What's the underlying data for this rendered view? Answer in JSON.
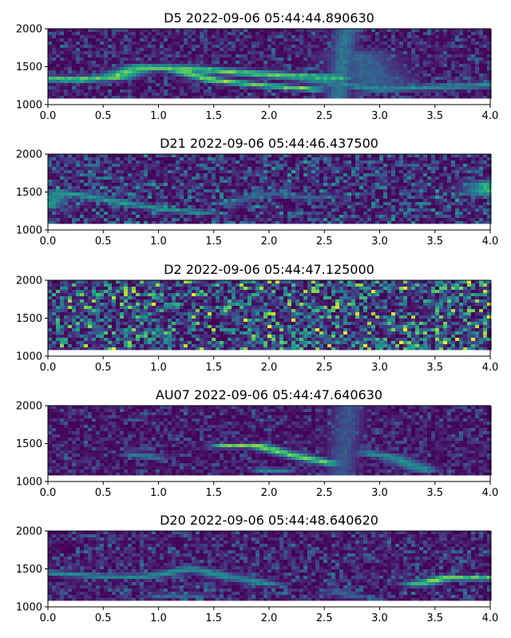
{
  "chart_data": [
    {
      "type": "heatmap",
      "title": "D5 2022-09-06 05:44:44.890630",
      "xlabel": "",
      "ylabel": "",
      "xlim": [
        0.0,
        4.0
      ],
      "ylim": [
        1000,
        2000
      ],
      "x_ticks": [
        "0.0",
        "0.5",
        "1.0",
        "1.5",
        "2.0",
        "2.5",
        "3.0",
        "3.5",
        "4.0"
      ],
      "y_ticks": [
        "1000",
        "1500",
        "2000"
      ],
      "data_ylim": [
        1080,
        2000
      ],
      "colormap": "viridis",
      "seed": 11,
      "noise_level": 0.18,
      "traces": [
        {
          "points": [
            [
              0.0,
              1340
            ],
            [
              0.3,
              1330
            ],
            [
              0.6,
              1360
            ],
            [
              0.85,
              1490
            ],
            [
              1.2,
              1480
            ],
            [
              1.6,
              1440
            ],
            [
              2.1,
              1380
            ],
            [
              2.6,
              1360
            ]
          ],
          "intensity": 0.85,
          "width": 30
        },
        {
          "points": [
            [
              1.1,
              1480
            ],
            [
              1.5,
              1320
            ],
            [
              1.9,
              1260
            ],
            [
              2.4,
              1200
            ]
          ],
          "intensity": 0.9,
          "width": 22
        },
        {
          "points": [
            [
              2.0,
              1420
            ],
            [
              2.5,
              1300
            ],
            [
              3.0,
              1200
            ],
            [
              3.5,
              1230
            ],
            [
              4.0,
              1260
            ]
          ],
          "intensity": 0.55,
          "width": 30
        },
        {
          "points": [
            [
              2.62,
              1050
            ],
            [
              2.66,
              1500
            ],
            [
              2.7,
              2000
            ]
          ],
          "intensity": 0.45,
          "width": 20
        },
        {
          "points": [
            [
              2.8,
              1650
            ],
            [
              2.9,
              1400
            ],
            [
              3.0,
              1250
            ]
          ],
          "intensity": 0.35,
          "width": 60
        }
      ]
    },
    {
      "type": "heatmap",
      "title": "D21 2022-09-06 05:44:46.437500",
      "xlabel": "",
      "ylabel": "",
      "xlim": [
        0.0,
        4.0
      ],
      "ylim": [
        1000,
        2000
      ],
      "x_ticks": [
        "0.0",
        "0.5",
        "1.0",
        "1.5",
        "2.0",
        "2.5",
        "3.0",
        "3.5",
        "4.0"
      ],
      "y_ticks": [
        "1000",
        "1500",
        "2000"
      ],
      "data_ylim": [
        1080,
        2000
      ],
      "colormap": "viridis",
      "seed": 23,
      "noise_level": 0.28,
      "traces": [
        {
          "points": [
            [
              0.0,
              1300
            ],
            [
              0.1,
              1500
            ],
            [
              0.3,
              1460
            ],
            [
              0.7,
              1350
            ],
            [
              1.1,
              1260
            ],
            [
              1.4,
              1230
            ]
          ],
          "intensity": 0.6,
          "width": 22
        },
        {
          "points": [
            [
              1.6,
              1350
            ],
            [
              2.0,
              1480
            ],
            [
              2.4,
              1420
            ]
          ],
          "intensity": 0.35,
          "width": 25
        },
        {
          "points": [
            [
              3.98,
              1500
            ],
            [
              4.0,
              1600
            ]
          ],
          "intensity": 0.7,
          "width": 40
        }
      ]
    },
    {
      "type": "heatmap",
      "title": "D2 2022-09-06 05:44:47.125000",
      "xlabel": "",
      "ylabel": "",
      "xlim": [
        0.0,
        4.0
      ],
      "ylim": [
        1000,
        2000
      ],
      "x_ticks": [
        "0.0",
        "0.5",
        "1.0",
        "1.5",
        "2.0",
        "2.5",
        "3.0",
        "3.5",
        "4.0"
      ],
      "y_ticks": [
        "1000",
        "1500",
        "2000"
      ],
      "data_ylim": [
        1080,
        2000
      ],
      "colormap": "viridis",
      "seed": 37,
      "noise_level": 0.5,
      "traces": []
    },
    {
      "type": "heatmap",
      "title": "AU07 2022-09-06 05:44:47.640630",
      "xlabel": "",
      "ylabel": "",
      "xlim": [
        0.0,
        4.0
      ],
      "ylim": [
        1000,
        2000
      ],
      "x_ticks": [
        "0.0",
        "0.5",
        "1.0",
        "1.5",
        "2.0",
        "2.5",
        "3.0",
        "3.5",
        "4.0"
      ],
      "y_ticks": [
        "1000",
        "1500",
        "2000"
      ],
      "data_ylim": [
        1080,
        2000
      ],
      "colormap": "viridis",
      "seed": 41,
      "noise_level": 0.16,
      "traces": [
        {
          "points": [
            [
              1.6,
              1470
            ],
            [
              1.9,
              1470
            ],
            [
              2.2,
              1350
            ],
            [
              2.55,
              1240
            ]
          ],
          "intensity": 0.85,
          "width": 22
        },
        {
          "points": [
            [
              0.8,
              1350
            ],
            [
              0.95,
              1320
            ]
          ],
          "intensity": 0.5,
          "width": 25
        },
        {
          "points": [
            [
              1.95,
              1150
            ],
            [
              2.1,
              1150
            ]
          ],
          "intensity": 0.6,
          "width": 20
        },
        {
          "points": [
            [
              2.9,
              1370
            ],
            [
              3.1,
              1330
            ],
            [
              3.4,
              1150
            ]
          ],
          "intensity": 0.55,
          "width": 25
        },
        {
          "points": [
            [
              2.65,
              1080
            ],
            [
              2.7,
              1700
            ],
            [
              2.72,
              2000
            ]
          ],
          "intensity": 0.3,
          "width": 25
        }
      ]
    },
    {
      "type": "heatmap",
      "title": "D20 2022-09-06 05:44:48.640620",
      "xlabel": "",
      "ylabel": "",
      "xlim": [
        0.0,
        4.0
      ],
      "ylim": [
        1000,
        2000
      ],
      "x_ticks": [
        "0.0",
        "0.5",
        "1.0",
        "1.5",
        "2.0",
        "2.5",
        "3.0",
        "3.5",
        "4.0"
      ],
      "y_ticks": [
        "1000",
        "1500",
        "2000"
      ],
      "data_ylim": [
        1080,
        2000
      ],
      "colormap": "viridis",
      "seed": 53,
      "noise_level": 0.2,
      "traces": [
        {
          "points": [
            [
              0.0,
              1450
            ],
            [
              0.5,
              1400
            ],
            [
              0.9,
              1400
            ],
            [
              1.3,
              1500
            ],
            [
              1.55,
              1420
            ],
            [
              2.0,
              1300
            ]
          ],
          "intensity": 0.55,
          "width": 25
        },
        {
          "points": [
            [
              1.0,
              1150
            ],
            [
              1.35,
              1150
            ]
          ],
          "intensity": 0.45,
          "width": 20
        },
        {
          "points": [
            [
              3.35,
              1300
            ],
            [
              3.6,
              1380
            ],
            [
              4.0,
              1380
            ]
          ],
          "intensity": 0.85,
          "width": 25
        },
        {
          "points": [
            [
              2.6,
              1200
            ],
            [
              2.8,
              1130
            ]
          ],
          "intensity": 0.35,
          "width": 25
        }
      ]
    }
  ]
}
